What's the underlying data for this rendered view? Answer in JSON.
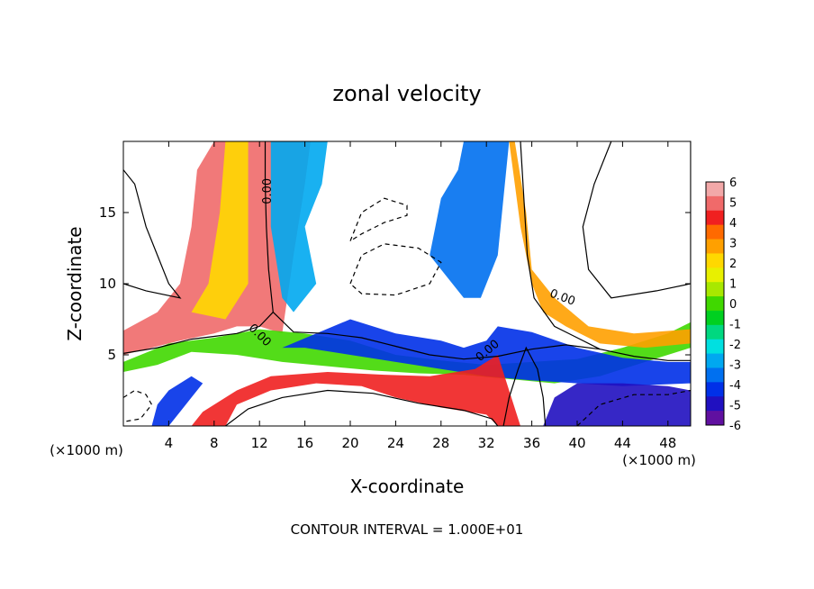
{
  "chart_data": {
    "type": "heatmap",
    "title": "zonal velocity",
    "xlabel": "X-coordinate",
    "ylabel": "Z-coordinate",
    "x_unit_label": "(×1000 m)",
    "y_unit_label": "(×1000 m)",
    "xlim": [
      0,
      50
    ],
    "ylim": [
      0,
      20
    ],
    "x_ticks": [
      "4",
      "8",
      "12",
      "16",
      "20",
      "24",
      "28",
      "32",
      "36",
      "40",
      "44",
      "48"
    ],
    "y_ticks": [
      "5",
      "10",
      "15"
    ],
    "colorbar": {
      "min": -6,
      "max": 6,
      "ticks": [
        "6",
        "5",
        "4",
        "3",
        "2",
        "1",
        "0",
        "-1",
        "-2",
        "-3",
        "-4",
        "-5",
        "-6"
      ],
      "colors": [
        "#f2a8a8",
        "#f06a6a",
        "#f02020",
        "#ff6a00",
        "#ffa000",
        "#ffd800",
        "#e8f000",
        "#a8e800",
        "#40d800",
        "#00d020",
        "#00d880",
        "#00e0e0",
        "#00a8f0",
        "#0070f0",
        "#0030e8",
        "#2010c0",
        "#6010a0"
      ]
    },
    "contour_labels": [
      "0.00",
      "0.00",
      "0.00",
      "0.00"
    ],
    "footer": "CONTOUR INTERVAL = 1.000E+01",
    "bands": [
      {
        "name": "left-plume",
        "points": [
          [
            8,
            20
          ],
          [
            6.5,
            18
          ],
          [
            6,
            14
          ],
          [
            5,
            10
          ],
          [
            3,
            8
          ],
          [
            0,
            6.7
          ],
          [
            0,
            5
          ],
          [
            5,
            6
          ],
          [
            8,
            6.5
          ],
          [
            10,
            7
          ],
          [
            12,
            7
          ],
          [
            14,
            6.5
          ],
          [
            15,
            12
          ],
          [
            16,
            17
          ],
          [
            16.5,
            20
          ]
        ]
      },
      {
        "name": "left-plume-warm",
        "points": [
          [
            9,
            20
          ],
          [
            8.5,
            15
          ],
          [
            7.5,
            10
          ],
          [
            6,
            8
          ],
          [
            9,
            7.5
          ],
          [
            11,
            10
          ],
          [
            11,
            15
          ],
          [
            11,
            20
          ]
        ]
      },
      {
        "name": "left-plume-cold",
        "points": [
          [
            13,
            20
          ],
          [
            13,
            14
          ],
          [
            14,
            9
          ],
          [
            15,
            8
          ],
          [
            17,
            10
          ],
          [
            16,
            14
          ],
          [
            17.5,
            17
          ],
          [
            18,
            20
          ]
        ]
      },
      {
        "name": "mid-shear-layer",
        "points": [
          [
            0,
            4.5
          ],
          [
            4,
            5.8
          ],
          [
            8,
            6.2
          ],
          [
            12,
            6.8
          ],
          [
            16,
            6.5
          ],
          [
            20,
            6
          ],
          [
            24,
            5
          ],
          [
            28,
            4.6
          ],
          [
            32,
            4.3
          ],
          [
            36,
            4.5
          ],
          [
            40,
            4.7
          ],
          [
            44,
            5.5
          ],
          [
            48,
            6.5
          ],
          [
            50,
            7.3
          ],
          [
            50,
            5.5
          ],
          [
            46,
            4.5
          ],
          [
            42,
            3.5
          ],
          [
            38,
            3
          ],
          [
            34,
            3.3
          ],
          [
            30,
            3.6
          ],
          [
            26,
            3.7
          ],
          [
            22,
            3.9
          ],
          [
            18,
            4.2
          ],
          [
            14,
            4.5
          ],
          [
            10,
            5
          ],
          [
            6,
            5.2
          ],
          [
            3,
            4.3
          ],
          [
            0,
            3.8
          ]
        ]
      },
      {
        "name": "mid-shear-cold",
        "points": [
          [
            20,
            7.5
          ],
          [
            24,
            6.5
          ],
          [
            28,
            6
          ],
          [
            30,
            5.5
          ],
          [
            32,
            6
          ],
          [
            33,
            7
          ],
          [
            36,
            6.6
          ],
          [
            40,
            5.5
          ],
          [
            44,
            4.8
          ],
          [
            48,
            4.5
          ],
          [
            50,
            4.5
          ],
          [
            50,
            3
          ],
          [
            44,
            2.8
          ],
          [
            40,
            3
          ],
          [
            36,
            3.2
          ],
          [
            32,
            3.5
          ],
          [
            28,
            4
          ],
          [
            24,
            4.5
          ],
          [
            20,
            5
          ],
          [
            16,
            5.5
          ],
          [
            14,
            5.5
          ]
        ]
      },
      {
        "name": "right-plume",
        "points": [
          [
            30,
            20
          ],
          [
            29.5,
            18
          ],
          [
            28,
            16
          ],
          [
            27,
            12
          ],
          [
            30,
            9
          ],
          [
            31.5,
            9
          ],
          [
            33,
            12
          ],
          [
            33.5,
            16
          ],
          [
            34,
            20
          ]
        ]
      },
      {
        "name": "right-plume-warm",
        "points": [
          [
            34.5,
            20
          ],
          [
            35.5,
            15
          ],
          [
            36,
            11
          ],
          [
            38,
            9
          ],
          [
            41,
            7
          ],
          [
            45,
            6.5
          ],
          [
            50,
            6.8
          ],
          [
            50,
            5.8
          ],
          [
            46,
            5.5
          ],
          [
            42,
            5.8
          ],
          [
            39,
            7
          ],
          [
            37,
            8
          ],
          [
            36,
            10
          ],
          [
            35,
            14
          ],
          [
            34,
            20
          ]
        ]
      },
      {
        "name": "lower-left-warm",
        "points": [
          [
            9,
            0
          ],
          [
            10,
            1.5
          ],
          [
            13,
            2.5
          ],
          [
            17,
            3
          ],
          [
            21,
            2.8
          ],
          [
            24,
            2
          ],
          [
            28,
            1.3
          ],
          [
            32,
            0.8
          ],
          [
            33,
            0
          ],
          [
            35,
            0
          ],
          [
            34,
            2.5
          ],
          [
            33,
            5
          ],
          [
            31,
            4
          ],
          [
            27,
            3.5
          ],
          [
            23,
            3.6
          ],
          [
            18,
            3.8
          ],
          [
            13,
            3.5
          ],
          [
            10,
            2.5
          ],
          [
            7,
            1
          ],
          [
            6,
            0
          ]
        ]
      },
      {
        "name": "lower-right-cold",
        "points": [
          [
            37,
            0
          ],
          [
            38,
            2
          ],
          [
            40,
            3
          ],
          [
            44,
            3
          ],
          [
            48,
            2.8
          ],
          [
            50,
            2.5
          ],
          [
            50,
            0
          ]
        ]
      },
      {
        "name": "bottom-left-cold",
        "points": [
          [
            4,
            0
          ],
          [
            5,
            1
          ],
          [
            6,
            2
          ],
          [
            7,
            3
          ],
          [
            6,
            3.5
          ],
          [
            4,
            2.5
          ],
          [
            3,
            1.5
          ],
          [
            2.5,
            0
          ]
        ]
      }
    ],
    "contours": [
      {
        "name": "zero-contour-left-plume",
        "dash": false,
        "points": [
          [
            12.5,
            20
          ],
          [
            12.5,
            17
          ],
          [
            12.6,
            14
          ],
          [
            12.8,
            11
          ],
          [
            13.2,
            8
          ],
          [
            12,
            7
          ],
          [
            10,
            6.5
          ],
          [
            8,
            6.3
          ],
          [
            6,
            6.1
          ],
          [
            3,
            5.5
          ],
          [
            0,
            5.1
          ]
        ]
      },
      {
        "name": "zero-contour-mid-layer",
        "dash": false,
        "points": [
          [
            13.2,
            8
          ],
          [
            15,
            6.6
          ],
          [
            18,
            6.5
          ],
          [
            21,
            6.2
          ],
          [
            24,
            5.6
          ],
          [
            27,
            5.0
          ],
          [
            30,
            4.7
          ],
          [
            33,
            4.9
          ],
          [
            36,
            5.4
          ],
          [
            39,
            5.7
          ],
          [
            42,
            5.4
          ],
          [
            45,
            4.9
          ],
          [
            48,
            4.6
          ],
          [
            50,
            4.6
          ]
        ]
      },
      {
        "name": "zero-contour-right-plume",
        "dash": false,
        "points": [
          [
            35,
            20
          ],
          [
            35.3,
            16
          ],
          [
            35.6,
            12
          ],
          [
            36.2,
            9
          ],
          [
            38,
            7
          ],
          [
            40,
            6.2
          ],
          [
            42,
            5.4
          ]
        ]
      },
      {
        "name": "zero-contour-lower",
        "dash": false,
        "points": [
          [
            9,
            0
          ],
          [
            11,
            1.2
          ],
          [
            14,
            2
          ],
          [
            18,
            2.5
          ],
          [
            22,
            2.3
          ],
          [
            26,
            1.6
          ],
          [
            30,
            1.1
          ],
          [
            32.5,
            0.5
          ],
          [
            33,
            0
          ]
        ]
      },
      {
        "name": "zero-contour-central",
        "dash": false,
        "points": [
          [
            33.5,
            0
          ],
          [
            34,
            2
          ],
          [
            34.8,
            4
          ],
          [
            35.5,
            5.5
          ],
          [
            36.5,
            4
          ],
          [
            37,
            2
          ],
          [
            37.2,
            0
          ]
        ]
      },
      {
        "name": "zero-contour-upper-left",
        "dash": false,
        "points": [
          [
            0,
            18
          ],
          [
            1,
            17
          ],
          [
            2,
            14
          ],
          [
            3,
            12
          ],
          [
            4,
            10
          ],
          [
            5,
            9
          ],
          [
            2,
            9.5
          ],
          [
            0,
            10
          ]
        ]
      },
      {
        "name": "zero-contour-upper-right",
        "dash": false,
        "points": [
          [
            43,
            20
          ],
          [
            41.5,
            17
          ],
          [
            40.5,
            14
          ],
          [
            41,
            11
          ],
          [
            43,
            9
          ],
          [
            47,
            9.5
          ],
          [
            50,
            10
          ],
          [
            50,
            20
          ]
        ]
      },
      {
        "name": "negative-contour-upper",
        "dash": true,
        "points": [
          [
            20,
            13
          ],
          [
            21,
            15
          ],
          [
            23,
            16
          ],
          [
            25,
            15.5
          ],
          [
            25,
            14.8
          ],
          [
            23,
            14.3
          ],
          [
            21,
            13.5
          ],
          [
            20,
            13
          ]
        ]
      },
      {
        "name": "negative-contour-mid",
        "dash": true,
        "points": [
          [
            20,
            10
          ],
          [
            21,
            12
          ],
          [
            23,
            12.8
          ],
          [
            26,
            12.5
          ],
          [
            28,
            11.5
          ],
          [
            27,
            10
          ],
          [
            24,
            9.2
          ],
          [
            21,
            9.3
          ],
          [
            20,
            10
          ]
        ]
      },
      {
        "name": "negative-contour-lower-right",
        "dash": true,
        "points": [
          [
            40,
            0
          ],
          [
            42,
            1.5
          ],
          [
            45,
            2.2
          ],
          [
            48,
            2.2
          ],
          [
            50,
            2.5
          ]
        ]
      },
      {
        "name": "negative-contour-lower-left",
        "dash": true,
        "points": [
          [
            0,
            2
          ],
          [
            1,
            2.5
          ],
          [
            2,
            2.2
          ],
          [
            2.5,
            1.5
          ],
          [
            1.5,
            0.5
          ],
          [
            0,
            0.3
          ]
        ]
      }
    ]
  }
}
